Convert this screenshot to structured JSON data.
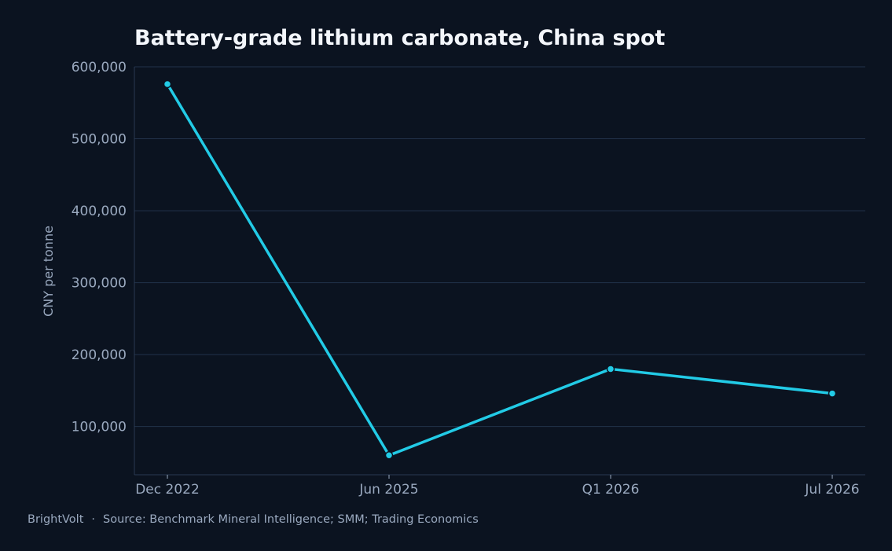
{
  "title": "Battery-grade lithium carbonate, China spot",
  "footer": {
    "brand": "BrightVolt",
    "separator": "·",
    "source": "Source: Benchmark Mineral Intelligence; SMM; Trading Economics"
  },
  "colors": {
    "background": "#0b1320",
    "line": "#22cbe6",
    "grid": "#22324a",
    "text": "#9aa9bf",
    "title": "#f3f6fb"
  },
  "chart_data": {
    "type": "line",
    "title": "Battery-grade lithium carbonate, China spot",
    "xlabel": "",
    "ylabel": "CNY per tonne",
    "categories": [
      "Dec 2022",
      "Jun 2025",
      "Q1 2026",
      "Jul 2026"
    ],
    "series": [
      {
        "values": [
          576000,
          60000,
          180000,
          146000
        ]
      }
    ],
    "ylim": [
      33000,
      600000
    ],
    "yticks": [
      100000,
      200000,
      300000,
      400000,
      500000,
      600000
    ],
    "ytick_labels": [
      "100,000",
      "200,000",
      "300,000",
      "400,000",
      "500,000",
      "600,000"
    ],
    "grid": true,
    "markers": true
  }
}
